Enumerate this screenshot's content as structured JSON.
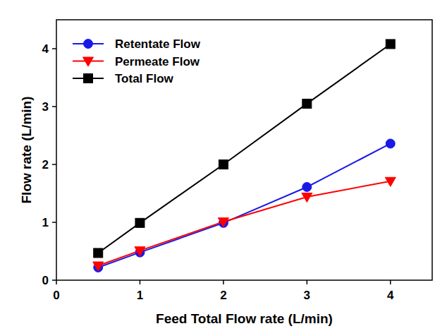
{
  "chart_data": {
    "type": "line",
    "x_label": "Feed Total Flow rate (L/min)",
    "y_label": "Flow rate (L/min)",
    "x": [
      0.5,
      1,
      2,
      3,
      4
    ],
    "series": [
      {
        "name": "Retentate Flow",
        "color": "#1a1ae6",
        "marker": "circle",
        "values": [
          0.22,
          0.48,
          0.99,
          1.61,
          2.36
        ]
      },
      {
        "name": "Permeate Flow",
        "color": "#ff0000",
        "marker": "triangle-down",
        "values": [
          0.25,
          0.51,
          1.01,
          1.44,
          1.71
        ]
      },
      {
        "name": "Total Flow",
        "color": "#000000",
        "marker": "square",
        "values": [
          0.47,
          0.99,
          2.0,
          3.05,
          4.08
        ]
      }
    ],
    "xlim": [
      0,
      4.5
    ],
    "xticks": [
      0,
      1,
      2,
      3,
      4
    ],
    "ylim": [
      0,
      4.5
    ],
    "yticks": [
      0,
      1,
      2,
      3,
      4
    ],
    "grid": false,
    "legend": "upper left"
  }
}
